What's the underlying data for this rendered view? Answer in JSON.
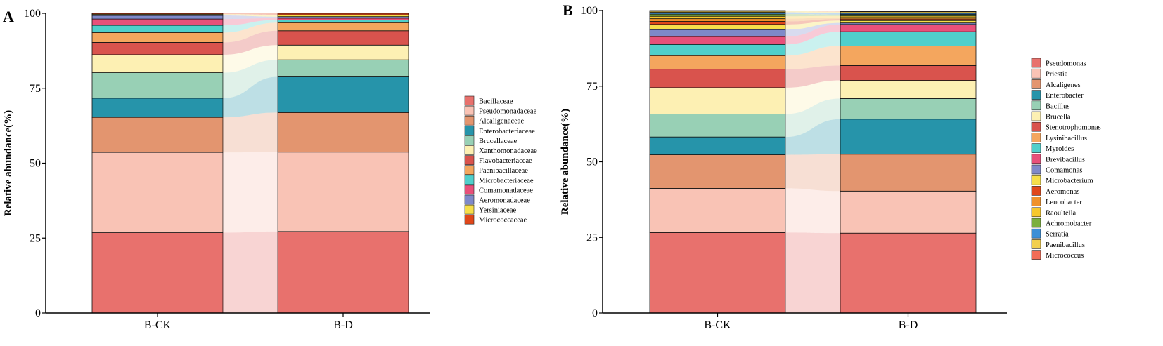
{
  "chart_data": [
    {
      "type": "stacked-bar",
      "panel_label": "A",
      "ylabel": "Relative abundance(%)",
      "ylim": [
        0,
        100
      ],
      "yticks": [
        0,
        25,
        50,
        75,
        100
      ],
      "categories": [
        "B-CK",
        "B-D"
      ],
      "legend_position": "right",
      "series": [
        {
          "name": "Bacillaceae",
          "color": "#E8716D",
          "values": [
            26.8,
            27.2
          ]
        },
        {
          "name": "Pseudomonadaceae",
          "color": "#F9C3B5",
          "values": [
            26.8,
            26.5
          ]
        },
        {
          "name": "Alcaligenaceae",
          "color": "#E3956F",
          "values": [
            11.7,
            13.2
          ]
        },
        {
          "name": "Enterobacteriaceae",
          "color": "#2694AA",
          "values": [
            6.4,
            11.9
          ]
        },
        {
          "name": "Brucellaceae",
          "color": "#98D0B5",
          "values": [
            8.5,
            5.7
          ]
        },
        {
          "name": "Xanthomonadaceae",
          "color": "#FDF0B3",
          "values": [
            6.0,
            4.9
          ]
        },
        {
          "name": "Flavobacteriaceae",
          "color": "#D9534D",
          "values": [
            4.1,
            4.8
          ]
        },
        {
          "name": "Paenibacillaceae",
          "color": "#F4A65E",
          "values": [
            3.3,
            2.7
          ]
        },
        {
          "name": "Microbacteriaceae",
          "color": "#50CFCB",
          "values": [
            2.4,
            0.9
          ]
        },
        {
          "name": "Comamonadaceae",
          "color": "#E8507A",
          "values": [
            2.1,
            0.6
          ]
        },
        {
          "name": "Aeromonadaceae",
          "color": "#7F89C9",
          "values": [
            1.2,
            0.5
          ]
        },
        {
          "name": "Yersiniaceae",
          "color": "#F6DE4A",
          "values": [
            0.4,
            0.6
          ]
        },
        {
          "name": "Micrococcaceae",
          "color": "#E0471A",
          "values": [
            0.3,
            0.5
          ]
        }
      ]
    },
    {
      "type": "stacked-bar",
      "panel_label": "B",
      "ylabel": "Relative abundance(%)",
      "ylim": [
        0,
        100
      ],
      "yticks": [
        0,
        25,
        50,
        75,
        100
      ],
      "categories": [
        "B-CK",
        "B-D"
      ],
      "legend_position": "right",
      "series": [
        {
          "name": "Pseudomonas",
          "color": "#E8716D",
          "values": [
            26.6,
            26.4
          ]
        },
        {
          "name": "Priestia",
          "color": "#F9C3B5",
          "values": [
            14.6,
            13.9
          ]
        },
        {
          "name": "Alcaligenes",
          "color": "#E3956F",
          "values": [
            11.1,
            12.2
          ]
        },
        {
          "name": "Enterobacter",
          "color": "#2694AA",
          "values": [
            5.9,
            11.6
          ]
        },
        {
          "name": "Bacillus",
          "color": "#98D0B5",
          "values": [
            7.6,
            6.8
          ]
        },
        {
          "name": "Brucella",
          "color": "#FDF0B3",
          "values": [
            8.7,
            6.0
          ]
        },
        {
          "name": "Stenotrophomonas",
          "color": "#D9534D",
          "values": [
            6.1,
            4.9
          ]
        },
        {
          "name": "Lysinibacillus",
          "color": "#F4A65E",
          "values": [
            4.5,
            6.5
          ]
        },
        {
          "name": "Myroides",
          "color": "#50CFCB",
          "values": [
            3.7,
            4.7
          ]
        },
        {
          "name": "Brevibacillus",
          "color": "#E8507A",
          "values": [
            2.6,
            2.4
          ]
        },
        {
          "name": "Comamonas",
          "color": "#7F89C9",
          "values": [
            2.3,
            0.5
          ]
        },
        {
          "name": "Microbacterium",
          "color": "#F6DE4A",
          "values": [
            1.7,
            0.8
          ]
        },
        {
          "name": "Aeromonas",
          "color": "#E0471A",
          "values": [
            1.0,
            0.5
          ]
        },
        {
          "name": "Leucobacter",
          "color": "#F0922B",
          "values": [
            0.9,
            0.5
          ]
        },
        {
          "name": "Raoultella",
          "color": "#F7C82E",
          "values": [
            0.8,
            0.5
          ]
        },
        {
          "name": "Achromobacter",
          "color": "#7BAF3F",
          "values": [
            0.7,
            0.5
          ]
        },
        {
          "name": "Serratia",
          "color": "#3D8FD6",
          "values": [
            0.6,
            0.4
          ]
        },
        {
          "name": "Paenibacillus",
          "color": "#F2CF4E",
          "values": [
            0.4,
            0.5
          ]
        },
        {
          "name": "Micrococcus",
          "color": "#F26D57",
          "values": [
            0.2,
            0.2
          ]
        }
      ]
    }
  ]
}
